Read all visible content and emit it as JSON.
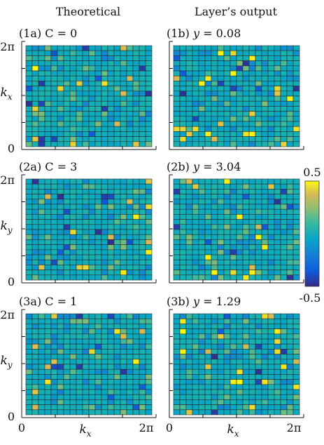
{
  "columns": [
    "Theoretical",
    "Layer’s output"
  ],
  "chart_data": [
    {
      "type": "heatmap",
      "title": "(1a) C = 0",
      "xlabel": "",
      "ylabel": "k_x",
      "yticks": [
        "0",
        "2π"
      ],
      "xticks": [],
      "grid": "20x20",
      "seed": 11
    },
    {
      "type": "heatmap",
      "title": "(1b) y = 0.08",
      "xlabel": "",
      "ylabel": "",
      "yticks": [],
      "xticks": [],
      "grid": "20x20",
      "seed": 23
    },
    {
      "type": "heatmap",
      "title": "(2a) C = 3",
      "xlabel": "",
      "ylabel": "k_y",
      "yticks": [
        "0",
        "2π"
      ],
      "xticks": [],
      "grid": "20x20",
      "seed": 37
    },
    {
      "type": "heatmap",
      "title": "(2b) y = 3.04",
      "xlabel": "",
      "ylabel": "",
      "yticks": [],
      "xticks": [],
      "grid": "20x20",
      "seed": 41
    },
    {
      "type": "heatmap",
      "title": "(3a) C = 1",
      "xlabel": "k_x",
      "ylabel": "k_y",
      "yticks": [
        "0",
        "2π"
      ],
      "xticks": [
        "0",
        "2π"
      ],
      "grid": "20x20",
      "seed": 53
    },
    {
      "type": "heatmap",
      "title": "(3b) y = 1.29",
      "xlabel": "k_x",
      "ylabel": "",
      "yticks": [],
      "xticks": [
        "0",
        "2π"
      ],
      "grid": "20x20",
      "seed": 67
    }
  ],
  "colorbar": {
    "max_label": "0.5",
    "min_label": "-0.5",
    "range": [
      -0.5,
      0.5
    ],
    "colormap": "parula"
  }
}
